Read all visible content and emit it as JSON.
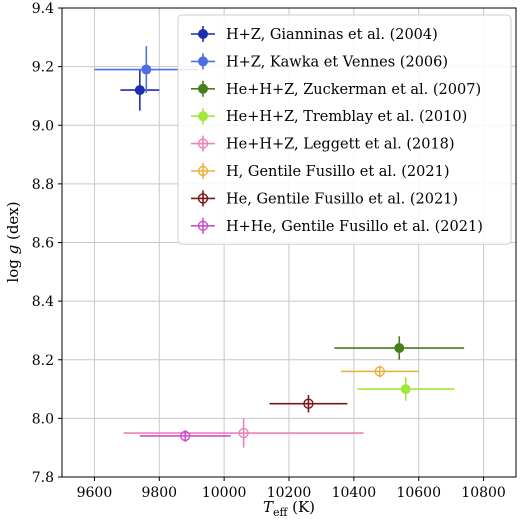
{
  "chart_data": {
    "type": "scatter",
    "xlabel": "T_eff (K)",
    "ylabel": "log g (dex)",
    "xlim": [
      9500,
      10900
    ],
    "ylim": [
      7.8,
      9.4
    ],
    "xticks": [
      9600,
      9800,
      10000,
      10200,
      10400,
      10600,
      10800
    ],
    "yticks": [
      7.8,
      8.0,
      8.2,
      8.4,
      8.6,
      8.8,
      9.0,
      9.2,
      9.4
    ],
    "grid": true,
    "legend_position": "top-right",
    "series": [
      {
        "name": "H+Z, Gianninas et al. (2004)",
        "color": "#1f2db0",
        "marker": "filled",
        "points": [
          {
            "x": 9740,
            "y": 9.12,
            "xerr": 60,
            "yerr": 0.07
          }
        ]
      },
      {
        "name": "H+Z, Kawka et Vennes (2006)",
        "color": "#4f6fe0",
        "marker": "filled",
        "points": [
          {
            "x": 9760,
            "y": 9.19,
            "xerr": 160,
            "yerr": 0.08
          }
        ]
      },
      {
        "name": "He+H+Z, Zuckerman et al. (2007)",
        "color": "#4a7d1c",
        "marker": "filled",
        "points": [
          {
            "x": 10540,
            "y": 8.24,
            "xerr": 200,
            "yerr": 0.04
          }
        ]
      },
      {
        "name": "He+H+Z, Tremblay et al. (2010)",
        "color": "#a0e83c",
        "marker": "filled",
        "points": [
          {
            "x": 10560,
            "y": 8.1,
            "xerr": 150,
            "yerr": 0.04
          }
        ]
      },
      {
        "name": "He+H+Z, Leggett et al. (2018)",
        "color": "#ee82b8",
        "marker": "open",
        "points": [
          {
            "x": 10060,
            "y": 7.95,
            "xerr": 370,
            "yerr": 0.05
          }
        ]
      },
      {
        "name": "H, Gentile Fusillo et al. (2021)",
        "color": "#e8b040",
        "marker": "open",
        "points": [
          {
            "x": 10480,
            "y": 8.16,
            "xerr": 120,
            "yerr": 0.02
          }
        ]
      },
      {
        "name": "He, Gentile Fusillo et al. (2021)",
        "color": "#7a1616",
        "marker": "open",
        "points": [
          {
            "x": 10260,
            "y": 8.05,
            "xerr": 120,
            "yerr": 0.03
          }
        ]
      },
      {
        "name": "H+He, Gentile Fusillo et al. (2021)",
        "color": "#cf4fcf",
        "marker": "open",
        "points": [
          {
            "x": 9880,
            "y": 7.94,
            "xerr": 140,
            "yerr": 0.02
          }
        ]
      }
    ]
  }
}
